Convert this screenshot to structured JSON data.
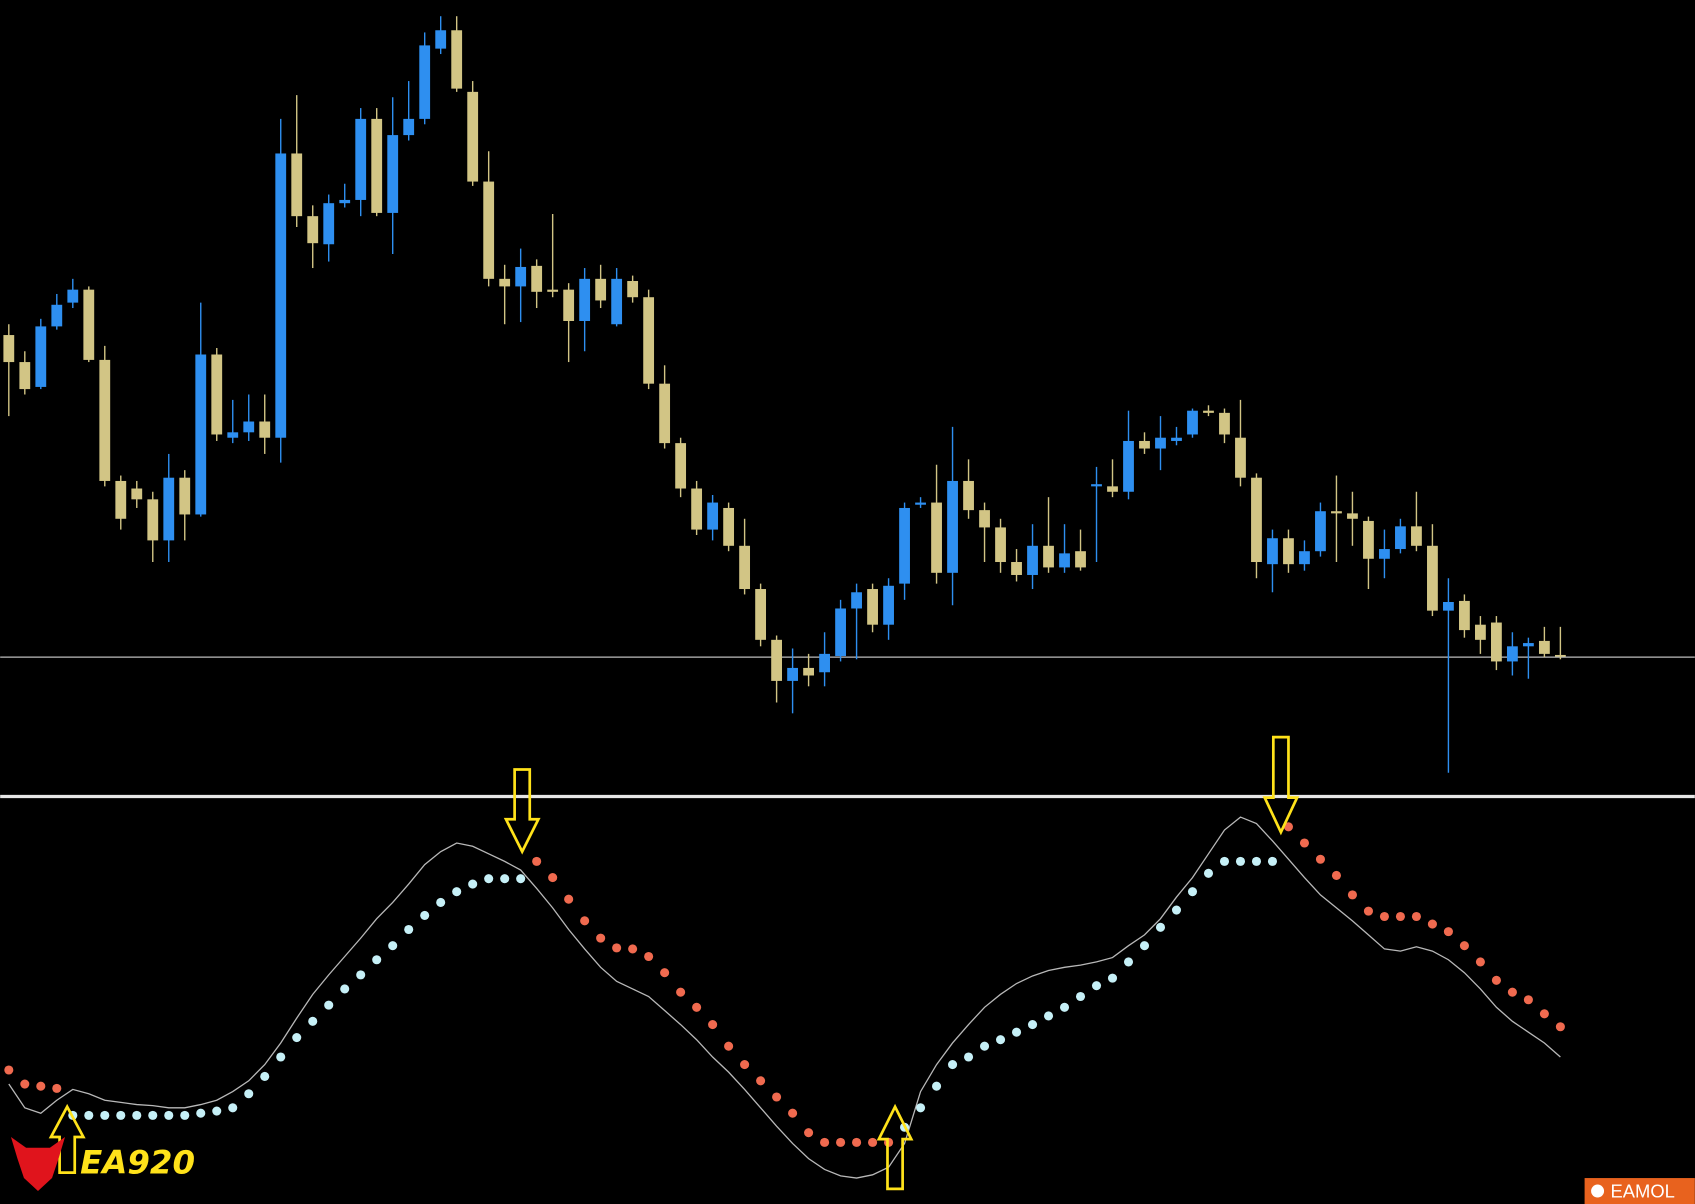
{
  "chart_data": [
    {
      "type": "candlestick",
      "up_color": "#2e8ff0",
      "down_color": "#d2c585",
      "ylim": [
        265,
        1000
      ],
      "price_line": 392,
      "open": [
        690,
        665,
        642,
        698,
        720,
        732,
        667,
        555,
        548,
        538,
        500,
        558,
        524,
        672,
        595,
        600,
        610,
        595,
        858,
        800,
        774,
        812,
        815,
        890,
        803,
        875,
        890,
        955,
        972,
        915,
        832,
        742,
        735,
        754,
        732,
        732,
        703,
        742,
        700,
        740,
        725,
        645,
        590,
        548,
        510,
        530,
        495,
        455,
        408,
        370,
        382,
        378,
        393,
        437,
        455,
        422,
        460,
        533,
        535,
        470,
        555,
        528,
        512,
        480,
        468,
        495,
        475,
        490,
        550,
        550,
        545,
        592,
        585,
        592,
        598,
        620,
        618,
        595,
        558,
        478,
        502,
        478,
        490,
        527,
        525,
        518,
        483,
        492,
        513,
        495,
        435,
        444,
        422,
        424,
        388,
        402,
        407,
        394
      ],
      "high": [
        700,
        675,
        705,
        728,
        742,
        735,
        680,
        560,
        555,
        545,
        580,
        565,
        720,
        678,
        630,
        635,
        635,
        890,
        912,
        810,
        820,
        830,
        900,
        900,
        910,
        925,
        970,
        985,
        985,
        925,
        860,
        755,
        770,
        760,
        802,
        738,
        752,
        755,
        752,
        745,
        732,
        662,
        595,
        555,
        542,
        535,
        520,
        460,
        412,
        400,
        395,
        415,
        445,
        460,
        460,
        465,
        535,
        540,
        570,
        605,
        575,
        535,
        520,
        492,
        515,
        540,
        515,
        510,
        568,
        575,
        620,
        600,
        615,
        605,
        622,
        625,
        622,
        630,
        562,
        510,
        510,
        500,
        535,
        560,
        545,
        522,
        510,
        520,
        545,
        515,
        465,
        450,
        430,
        430,
        415,
        410,
        420,
        420
      ],
      "low": [
        615,
        635,
        640,
        695,
        715,
        665,
        550,
        510,
        530,
        480,
        480,
        500,
        522,
        592,
        590,
        592,
        580,
        572,
        790,
        752,
        758,
        808,
        800,
        800,
        765,
        870,
        885,
        950,
        915,
        828,
        735,
        700,
        702,
        715,
        725,
        665,
        675,
        715,
        698,
        720,
        640,
        585,
        540,
        505,
        500,
        490,
        450,
        402,
        350,
        340,
        365,
        365,
        388,
        390,
        415,
        408,
        445,
        530,
        460,
        440,
        520,
        480,
        470,
        462,
        455,
        470,
        470,
        472,
        480,
        540,
        538,
        580,
        565,
        588,
        595,
        615,
        590,
        550,
        465,
        452,
        470,
        472,
        485,
        480,
        495,
        455,
        465,
        488,
        490,
        430,
        285,
        410,
        395,
        380,
        375,
        372,
        392,
        390
      ],
      "close": [
        665,
        640,
        698,
        718,
        732,
        667,
        555,
        520,
        538,
        500,
        558,
        524,
        672,
        598,
        600,
        610,
        595,
        858,
        800,
        775,
        812,
        815,
        890,
        803,
        875,
        890,
        958,
        972,
        918,
        832,
        742,
        735,
        753,
        730,
        730,
        703,
        742,
        722,
        742,
        725,
        645,
        590,
        548,
        510,
        535,
        495,
        455,
        408,
        370,
        382,
        375,
        395,
        437,
        452,
        422,
        458,
        530,
        535,
        470,
        555,
        528,
        512,
        480,
        468,
        495,
        475,
        488,
        475,
        552,
        545,
        592,
        585,
        595,
        595,
        620,
        618,
        598,
        558,
        480,
        502,
        478,
        490,
        527,
        525,
        520,
        483,
        492,
        513,
        495,
        435,
        443,
        417,
        408,
        388,
        402,
        405,
        395,
        393
      ]
    },
    {
      "type": "line",
      "ylim": [
        -14,
        360
      ],
      "series": [
        {
          "color": "#b8b8b8",
          "style": "line",
          "values": [
            97,
            75,
            70,
            82,
            92,
            88,
            82,
            80,
            78,
            77,
            75,
            75,
            78,
            82,
            90,
            100,
            115,
            135,
            158,
            180,
            198,
            215,
            232,
            250,
            265,
            282,
            300,
            312,
            320,
            317,
            310,
            303,
            295,
            278,
            260,
            240,
            222,
            205,
            192,
            185,
            178,
            165,
            152,
            138,
            122,
            108,
            92,
            75,
            58,
            42,
            28,
            18,
            12,
            10,
            13,
            20,
            42,
            90,
            115,
            135,
            152,
            168,
            180,
            190,
            197,
            202,
            205,
            207,
            210,
            214,
            225,
            235,
            250,
            270,
            288,
            310,
            332,
            344,
            338,
            322,
            305,
            288,
            272,
            260,
            248,
            235,
            222,
            220,
            224,
            220,
            212,
            200,
            185,
            168,
            155,
            145,
            135,
            122
          ]
        },
        {
          "color": "#c6f0f7",
          "style": "dots",
          "values": [
            null,
            null,
            null,
            null,
            68,
            68,
            68,
            68,
            68,
            68,
            68,
            68,
            70,
            72,
            75,
            88,
            104,
            122,
            140,
            155,
            170,
            185,
            198,
            212,
            225,
            240,
            253,
            265,
            275,
            282,
            287,
            287,
            287,
            null,
            null,
            null,
            null,
            null,
            null,
            null,
            null,
            null,
            null,
            null,
            null,
            null,
            null,
            null,
            null,
            null,
            null,
            null,
            null,
            null,
            null,
            null,
            57,
            75,
            95,
            115,
            122,
            132,
            138,
            145,
            152,
            160,
            168,
            178,
            188,
            195,
            210,
            225,
            242,
            258,
            275,
            292,
            303,
            303,
            303,
            303,
            null,
            null,
            null,
            null,
            null,
            null,
            null,
            null,
            null,
            null,
            null,
            null,
            null,
            null,
            null,
            null,
            null,
            null
          ]
        },
        {
          "color": "#f06a4f",
          "style": "dots",
          "values": [
            110,
            97,
            95,
            93,
            null,
            null,
            null,
            null,
            null,
            null,
            null,
            null,
            null,
            null,
            null,
            null,
            null,
            null,
            null,
            null,
            null,
            null,
            null,
            null,
            null,
            null,
            null,
            null,
            null,
            null,
            null,
            null,
            null,
            303,
            288,
            268,
            248,
            232,
            223,
            222,
            215,
            200,
            182,
            168,
            152,
            132,
            115,
            100,
            85,
            70,
            52,
            43,
            43,
            43,
            43,
            43,
            null,
            null,
            null,
            null,
            null,
            null,
            null,
            null,
            null,
            null,
            null,
            null,
            null,
            null,
            null,
            null,
            null,
            null,
            null,
            null,
            null,
            null,
            null,
            null,
            335,
            320,
            305,
            290,
            272,
            257,
            252,
            252,
            252,
            245,
            238,
            225,
            210,
            193,
            182,
            175,
            162,
            150
          ]
        }
      ]
    }
  ],
  "watermarks": {
    "logo": "EA920",
    "brand": "EAMOL"
  }
}
